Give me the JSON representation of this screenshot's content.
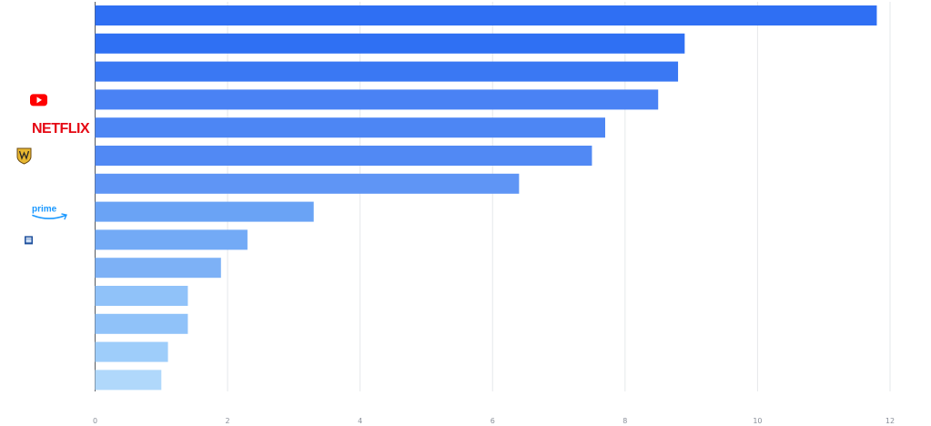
{
  "chart_data": {
    "type": "bar",
    "orientation": "horizontal",
    "title": "",
    "xlabel": "",
    "ylabel": "",
    "xlim": [
      0,
      12
    ],
    "xticks": [
      "0",
      "2",
      "4",
      "6",
      "8",
      "10",
      "12"
    ],
    "grid": true,
    "legend": "none",
    "categories": [
      "",
      "",
      "",
      "YouTube",
      "Netflix",
      "Warner Bros",
      "",
      "Prime Video",
      "",
      "",
      "",
      "",
      "",
      ""
    ],
    "logos": [
      "",
      "",
      "",
      "youtube-logo",
      "netflix-logo",
      "warner-bros-logo",
      "",
      "prime-video-logo",
      "small-logo",
      "",
      "",
      "",
      "",
      ""
    ],
    "logo_text": {
      "netflix": "NETFLIX",
      "prime": "prime"
    },
    "values": [
      11.8,
      8.9,
      8.8,
      8.5,
      7.7,
      7.5,
      6.4,
      3.3,
      2.3,
      1.9,
      1.4,
      1.4,
      1.1,
      1.0
    ],
    "colors": [
      "#2f6ff3",
      "#2f70f3",
      "#3a78f3",
      "#4a82f4",
      "#4d86f4",
      "#5189f4",
      "#5f95f5",
      "#6aa3f5",
      "#73aaf6",
      "#7db1f6",
      "#90c2f9",
      "#90c2f9",
      "#9ecdfa",
      "#b0d8fb"
    ]
  }
}
